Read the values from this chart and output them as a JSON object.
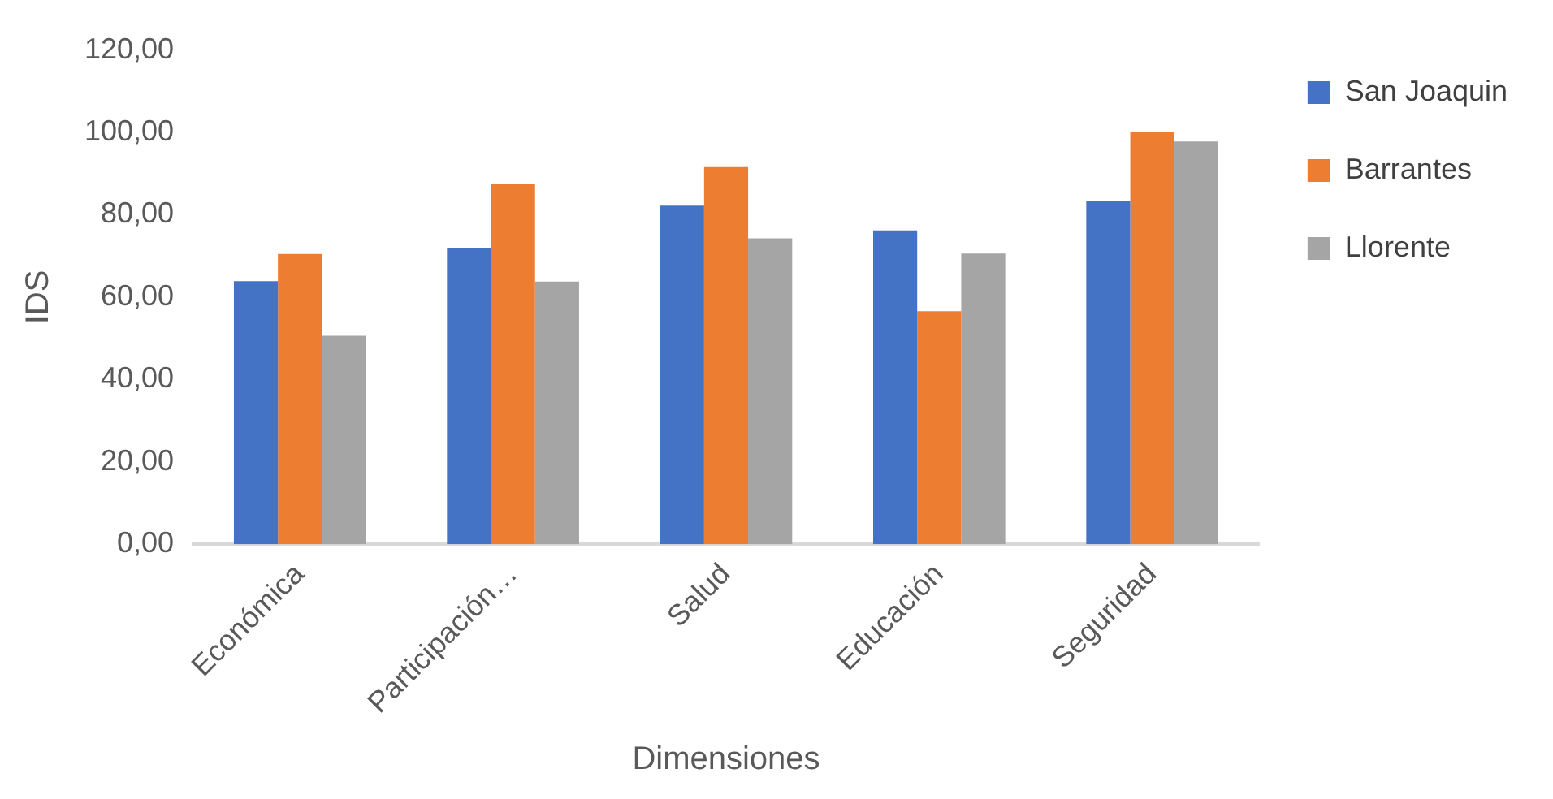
{
  "chart_data": {
    "type": "bar",
    "xlabel": "Dimensiones",
    "ylabel": "IDS",
    "categories": [
      "Económica",
      "Participación…",
      "Salud",
      "Educación",
      "Seguridad"
    ],
    "series": [
      {
        "name": "San Joaquin",
        "color": "#4472c4",
        "values": [
          63.9,
          71.8,
          82.2,
          76.2,
          83.3
        ]
      },
      {
        "name": "Barrantes",
        "color": "#ed7d31",
        "values": [
          70.5,
          87.4,
          91.6,
          56.6,
          100.0
        ]
      },
      {
        "name": "Llorente",
        "color": "#a5a5a5",
        "values": [
          50.6,
          63.8,
          74.3,
          70.6,
          97.8
        ]
      }
    ],
    "ylim": [
      0,
      120
    ],
    "yticks": [
      {
        "value": 0,
        "label": "0,00"
      },
      {
        "value": 20,
        "label": "20,00"
      },
      {
        "value": 40,
        "label": "40,00"
      },
      {
        "value": 60,
        "label": "60,00"
      },
      {
        "value": 80,
        "label": "80,00"
      },
      {
        "value": 100,
        "label": "100,00"
      },
      {
        "value": 120,
        "label": "120,00"
      }
    ],
    "grid": false,
    "legend": "top right"
  }
}
